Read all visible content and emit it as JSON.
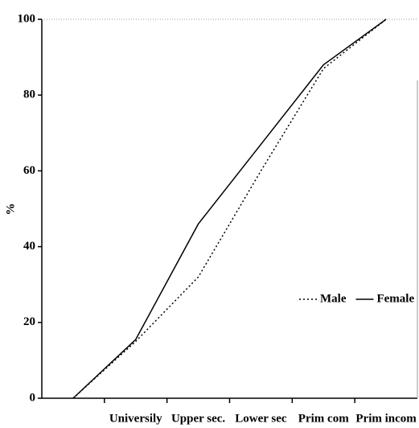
{
  "chart_data": {
    "type": "line",
    "y_label": "%",
    "categories": [
      null,
      "Universily",
      "Upper sec.",
      "Lower sec",
      "Prim com",
      "Prim incom"
    ],
    "series": [
      {
        "name": "Male",
        "color": "#000000",
        "dash": "dotted",
        "values": [
          0,
          15,
          32,
          60,
          87,
          100
        ]
      },
      {
        "name": "Female",
        "color": "#000000",
        "dash": "solid",
        "values": [
          0,
          15.5,
          46,
          67,
          88,
          100
        ]
      }
    ],
    "ylim": [
      0,
      100
    ],
    "yticks": [
      0,
      20,
      40,
      60,
      80,
      100
    ],
    "grid": false,
    "legend": "right"
  }
}
